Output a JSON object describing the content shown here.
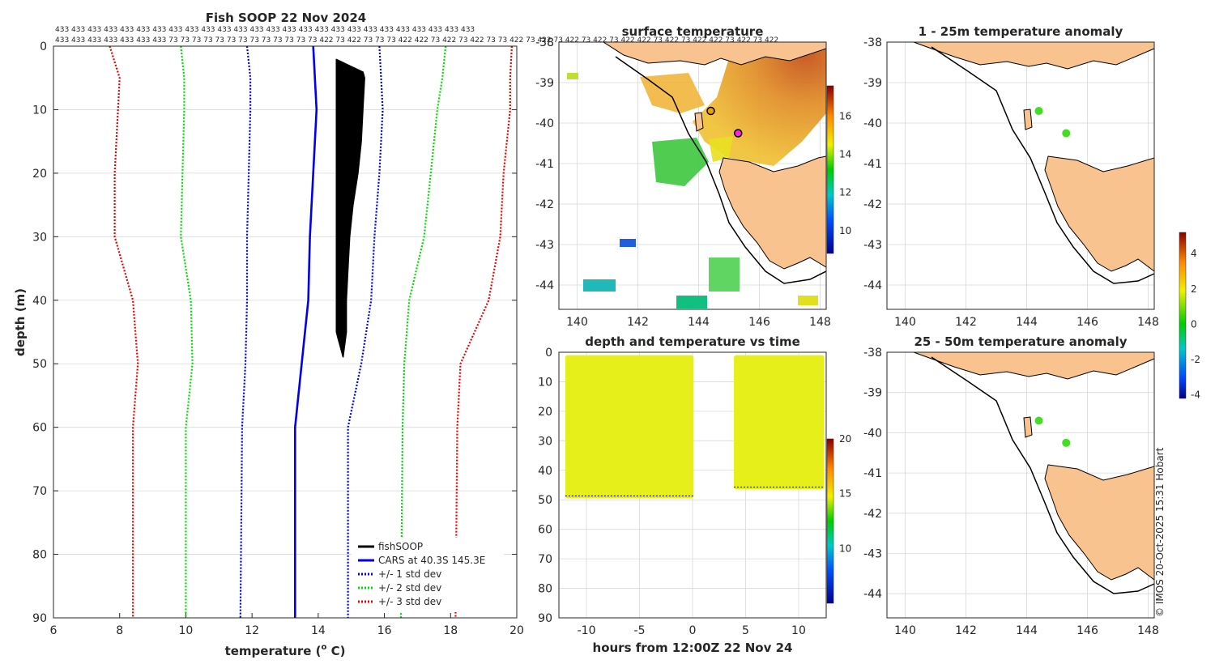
{
  "chart_data": [
    {
      "type": "line",
      "panel": "profile",
      "title": "Fish SOOP 22 Nov 2024",
      "xlabel_prefix": "temperature (",
      "xlabel_sup": "o",
      "xlabel_suffix": " C)",
      "ylabel": "depth (m)",
      "xlim": [
        6,
        20
      ],
      "ylim": [
        0,
        90
      ],
      "xticks": [
        "6",
        "8",
        "10",
        "12",
        "14",
        "16",
        "18",
        "20"
      ],
      "yticks": [
        "0",
        "10",
        "20",
        "30",
        "40",
        "50",
        "60",
        "70",
        "80",
        "90"
      ],
      "obs_row1": "433 433 433 433 433 433 433 433 433 433 433 433 433 433 433 433 433 433 433 433 433 433 433 433 433 433",
      "obs_row2": "433 433 433 433 433 433 433 73 73 73 73 73 73 73 73 73 73 73 73 73 422 73 422 73 73 73 422 422 73 422 73 422 73 73 422 73 422 73 422 73 422 73 422 422 73 422 73 422 422 73 422 73 422",
      "series": [
        {
          "name": "fishSOOP",
          "color": "#000000",
          "style": "solid",
          "depth": [
            2,
            5,
            10,
            15,
            20,
            25,
            30,
            35,
            40,
            45,
            49
          ],
          "temp_min": [
            14.55,
            14.55,
            14.55,
            14.55,
            14.55,
            14.55,
            14.55,
            14.55,
            14.55,
            14.55,
            14.6
          ],
          "temp_max": [
            15.35,
            15.4,
            15.35,
            15.3,
            15.2,
            15.05,
            14.95,
            14.9,
            14.85,
            14.85,
            14.75
          ]
        },
        {
          "name": "CARS at 40.3S 145.3E",
          "color": "#0000ee",
          "style": "solid",
          "depth": [
            0,
            10,
            20,
            30,
            40,
            60,
            90
          ],
          "temp": [
            13.85,
            13.95,
            13.85,
            13.75,
            13.7,
            13.3,
            13.3
          ]
        },
        {
          "name": "+/- 1 std dev",
          "color": "#0000ee",
          "style": "dot",
          "depth": [
            0,
            5,
            10,
            20,
            30,
            40,
            50,
            60,
            90
          ],
          "lower": [
            11.85,
            11.95,
            11.95,
            11.9,
            11.85,
            11.85,
            11.8,
            11.7,
            11.65
          ],
          "upper": [
            15.85,
            15.9,
            15.95,
            15.85,
            15.7,
            15.6,
            15.3,
            14.9,
            14.9
          ]
        },
        {
          "name": "+/- 2 std dev",
          "color": "#00dd00",
          "style": "dot",
          "depth": [
            0,
            5,
            10,
            20,
            30,
            40,
            50,
            60,
            90
          ],
          "lower": [
            9.85,
            9.95,
            9.95,
            9.9,
            9.85,
            10.15,
            10.2,
            10.0,
            10.0
          ],
          "upper": [
            17.85,
            17.75,
            17.6,
            17.4,
            17.2,
            16.75,
            16.6,
            16.55,
            16.5
          ],
          "label_spacer": ""
        },
        {
          "name": "+/- 3 std dev",
          "color": "#ee0000",
          "style": "dot",
          "depth": [
            0,
            5,
            10,
            20,
            30,
            40,
            50,
            60,
            90
          ],
          "lower": [
            7.7,
            8.0,
            7.95,
            7.85,
            7.85,
            8.4,
            8.55,
            8.4,
            8.4
          ],
          "upper": [
            19.85,
            19.8,
            19.8,
            19.6,
            19.5,
            19.15,
            18.3,
            18.2,
            18.15
          ]
        }
      ]
    },
    {
      "type": "heatmap",
      "panel": "surface-temperature",
      "title": "surface temperature",
      "xlim": [
        139.4,
        148.2
      ],
      "ylim": [
        -44.6,
        -38
      ],
      "xticks": [
        "140",
        "142",
        "144",
        "146",
        "148"
      ],
      "yticks": [
        "-38",
        "-39",
        "-40",
        "-41",
        "-42",
        "-43",
        "-44"
      ],
      "colorbar": {
        "min": 8.8,
        "max": 17.6,
        "ticks": [
          "10",
          "12",
          "14",
          "16"
        ]
      },
      "markers": [
        {
          "lon": 144.4,
          "lat": -39.7,
          "color": "#e8a000"
        },
        {
          "lon": 145.3,
          "lat": -40.25,
          "color": "#ff22dd"
        }
      ]
    },
    {
      "type": "scatter",
      "panel": "depth-temperature-vs-time",
      "title": "depth and temperature vs time",
      "xlabel": "hours from 12:00Z 22 Nov 24",
      "xlim": [
        -12.6,
        12.6
      ],
      "ylim": [
        0,
        90
      ],
      "xticks": [
        "-10",
        "-5",
        "0",
        "5",
        "10"
      ],
      "yticks": [
        "0",
        "10",
        "20",
        "30",
        "40",
        "50",
        "60",
        "70",
        "80",
        "90"
      ],
      "segments": [
        {
          "t_start": -12.0,
          "t_end": 0.1,
          "depth_max": 49.5,
          "temp": 15.9
        },
        {
          "t_start": 3.9,
          "t_end": 12.4,
          "depth_max": 46.5,
          "temp": 16.3
        }
      ],
      "colorbar": {
        "min": 5,
        "max": 20,
        "ticks": [
          "10",
          "15",
          "20"
        ]
      }
    },
    {
      "type": "scatter",
      "panel": "anomaly-1-25m",
      "title": "1 - 25m temperature anomaly",
      "xlim": [
        139.4,
        148.2
      ],
      "ylim": [
        -44.6,
        -38
      ],
      "xticks": [
        "140",
        "142",
        "144",
        "146",
        "148"
      ],
      "yticks": [
        "-38",
        "-39",
        "-40",
        "-41",
        "-42",
        "-43",
        "-44"
      ],
      "points": [
        {
          "lon": 144.4,
          "lat": -39.7,
          "anomaly": 0.6
        },
        {
          "lon": 145.3,
          "lat": -40.25,
          "anomaly": 0.6
        }
      ]
    },
    {
      "type": "scatter",
      "panel": "anomaly-25-50m",
      "title": "25 - 50m temperature anomaly",
      "xlim": [
        139.4,
        148.2
      ],
      "ylim": [
        -44.6,
        -38
      ],
      "xticks": [
        "140",
        "142",
        "144",
        "146",
        "148"
      ],
      "yticks": [
        "-38",
        "-39",
        "-40",
        "-41",
        "-42",
        "-43",
        "-44"
      ],
      "points": [
        {
          "lon": 144.4,
          "lat": -39.7,
          "anomaly": 0.6
        },
        {
          "lon": 145.3,
          "lat": -40.25,
          "anomaly": 0.6
        }
      ],
      "colorbar": {
        "min": -4.2,
        "max": 5.2,
        "ticks": [
          "4",
          "2",
          "0",
          "-2",
          "-4"
        ]
      }
    }
  ],
  "credit": "© IMOS 20-Oct-2025 15:31 Hobart",
  "colors": {
    "land": "#f9c38f",
    "grid": "#d8d8d8"
  }
}
